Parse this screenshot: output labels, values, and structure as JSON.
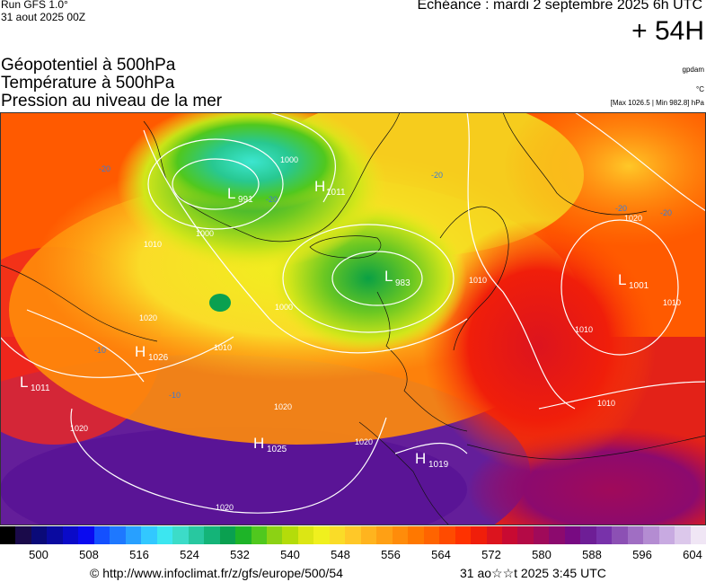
{
  "header": {
    "run": "Run GFS 1.0°",
    "run_date": "31 aout 2025 00Z",
    "echeance": "Echéance : mardi 2 septembre 2025 6h UTC",
    "lead": "+ 54H"
  },
  "titles": {
    "line1": "Géopotentiel à 500hPa",
    "line2": "Température à 500hPa",
    "line3": "Pression au niveau de la mer"
  },
  "units": {
    "geopot": "gpdam",
    "temp": "°C",
    "pressure": "[Max 1026.5 | Min 982.8] hPa"
  },
  "pressure_centers": [
    {
      "type": "L",
      "value": "991"
    },
    {
      "type": "H",
      "value": "1011"
    },
    {
      "type": "L",
      "value": "983"
    },
    {
      "type": "L",
      "value": "1001"
    },
    {
      "type": "H",
      "value": "1026"
    },
    {
      "type": "L",
      "value": "1011"
    },
    {
      "type": "H",
      "value": "1025"
    },
    {
      "type": "H",
      "value": "1019"
    }
  ],
  "isobar_labels": [
    "1000",
    "1000",
    "1010",
    "1010",
    "1020",
    "1020",
    "1020",
    "1020",
    "1020",
    "1020",
    "1010",
    "1010",
    "1010",
    "1000",
    "1010"
  ],
  "temp_labels": [
    "-20",
    "-20",
    "-20",
    "-20",
    "-20",
    "-10",
    "-10"
  ],
  "colorscale": {
    "labels": [
      "500",
      "508",
      "516",
      "524",
      "532",
      "540",
      "548",
      "556",
      "564",
      "572",
      "580",
      "588",
      "596",
      "604"
    ],
    "colors": [
      "#000000",
      "#1a0a4a",
      "#0a0a78",
      "#0a0aa0",
      "#0a0ac8",
      "#0a0af0",
      "#1450ff",
      "#1e78ff",
      "#28a0ff",
      "#32c8ff",
      "#3ce6f0",
      "#3cdcc8",
      "#28c8a0",
      "#14b478",
      "#0aa050",
      "#1eb428",
      "#50c81e",
      "#8cd214",
      "#b4dc0a",
      "#dce614",
      "#f0f01e",
      "#fadc28",
      "#ffc828",
      "#ffb41e",
      "#ffa014",
      "#ff8c0a",
      "#ff7800",
      "#ff6400",
      "#ff4b00",
      "#ff3200",
      "#f01e0a",
      "#dc141e",
      "#c80a32",
      "#b40a46",
      "#a00a5a",
      "#8c0a6e",
      "#780a82",
      "#6e1e96",
      "#7832aa",
      "#8c50b4",
      "#a06ec3",
      "#b48cd2",
      "#c8aae1",
      "#dcc8eb",
      "#f0e6f5"
    ]
  },
  "footer": {
    "url": "© http://www.infoclimat.fr/z/gfs/europe/500/54",
    "date": "31 ao☆☆t 2025  3:45 UTC"
  }
}
